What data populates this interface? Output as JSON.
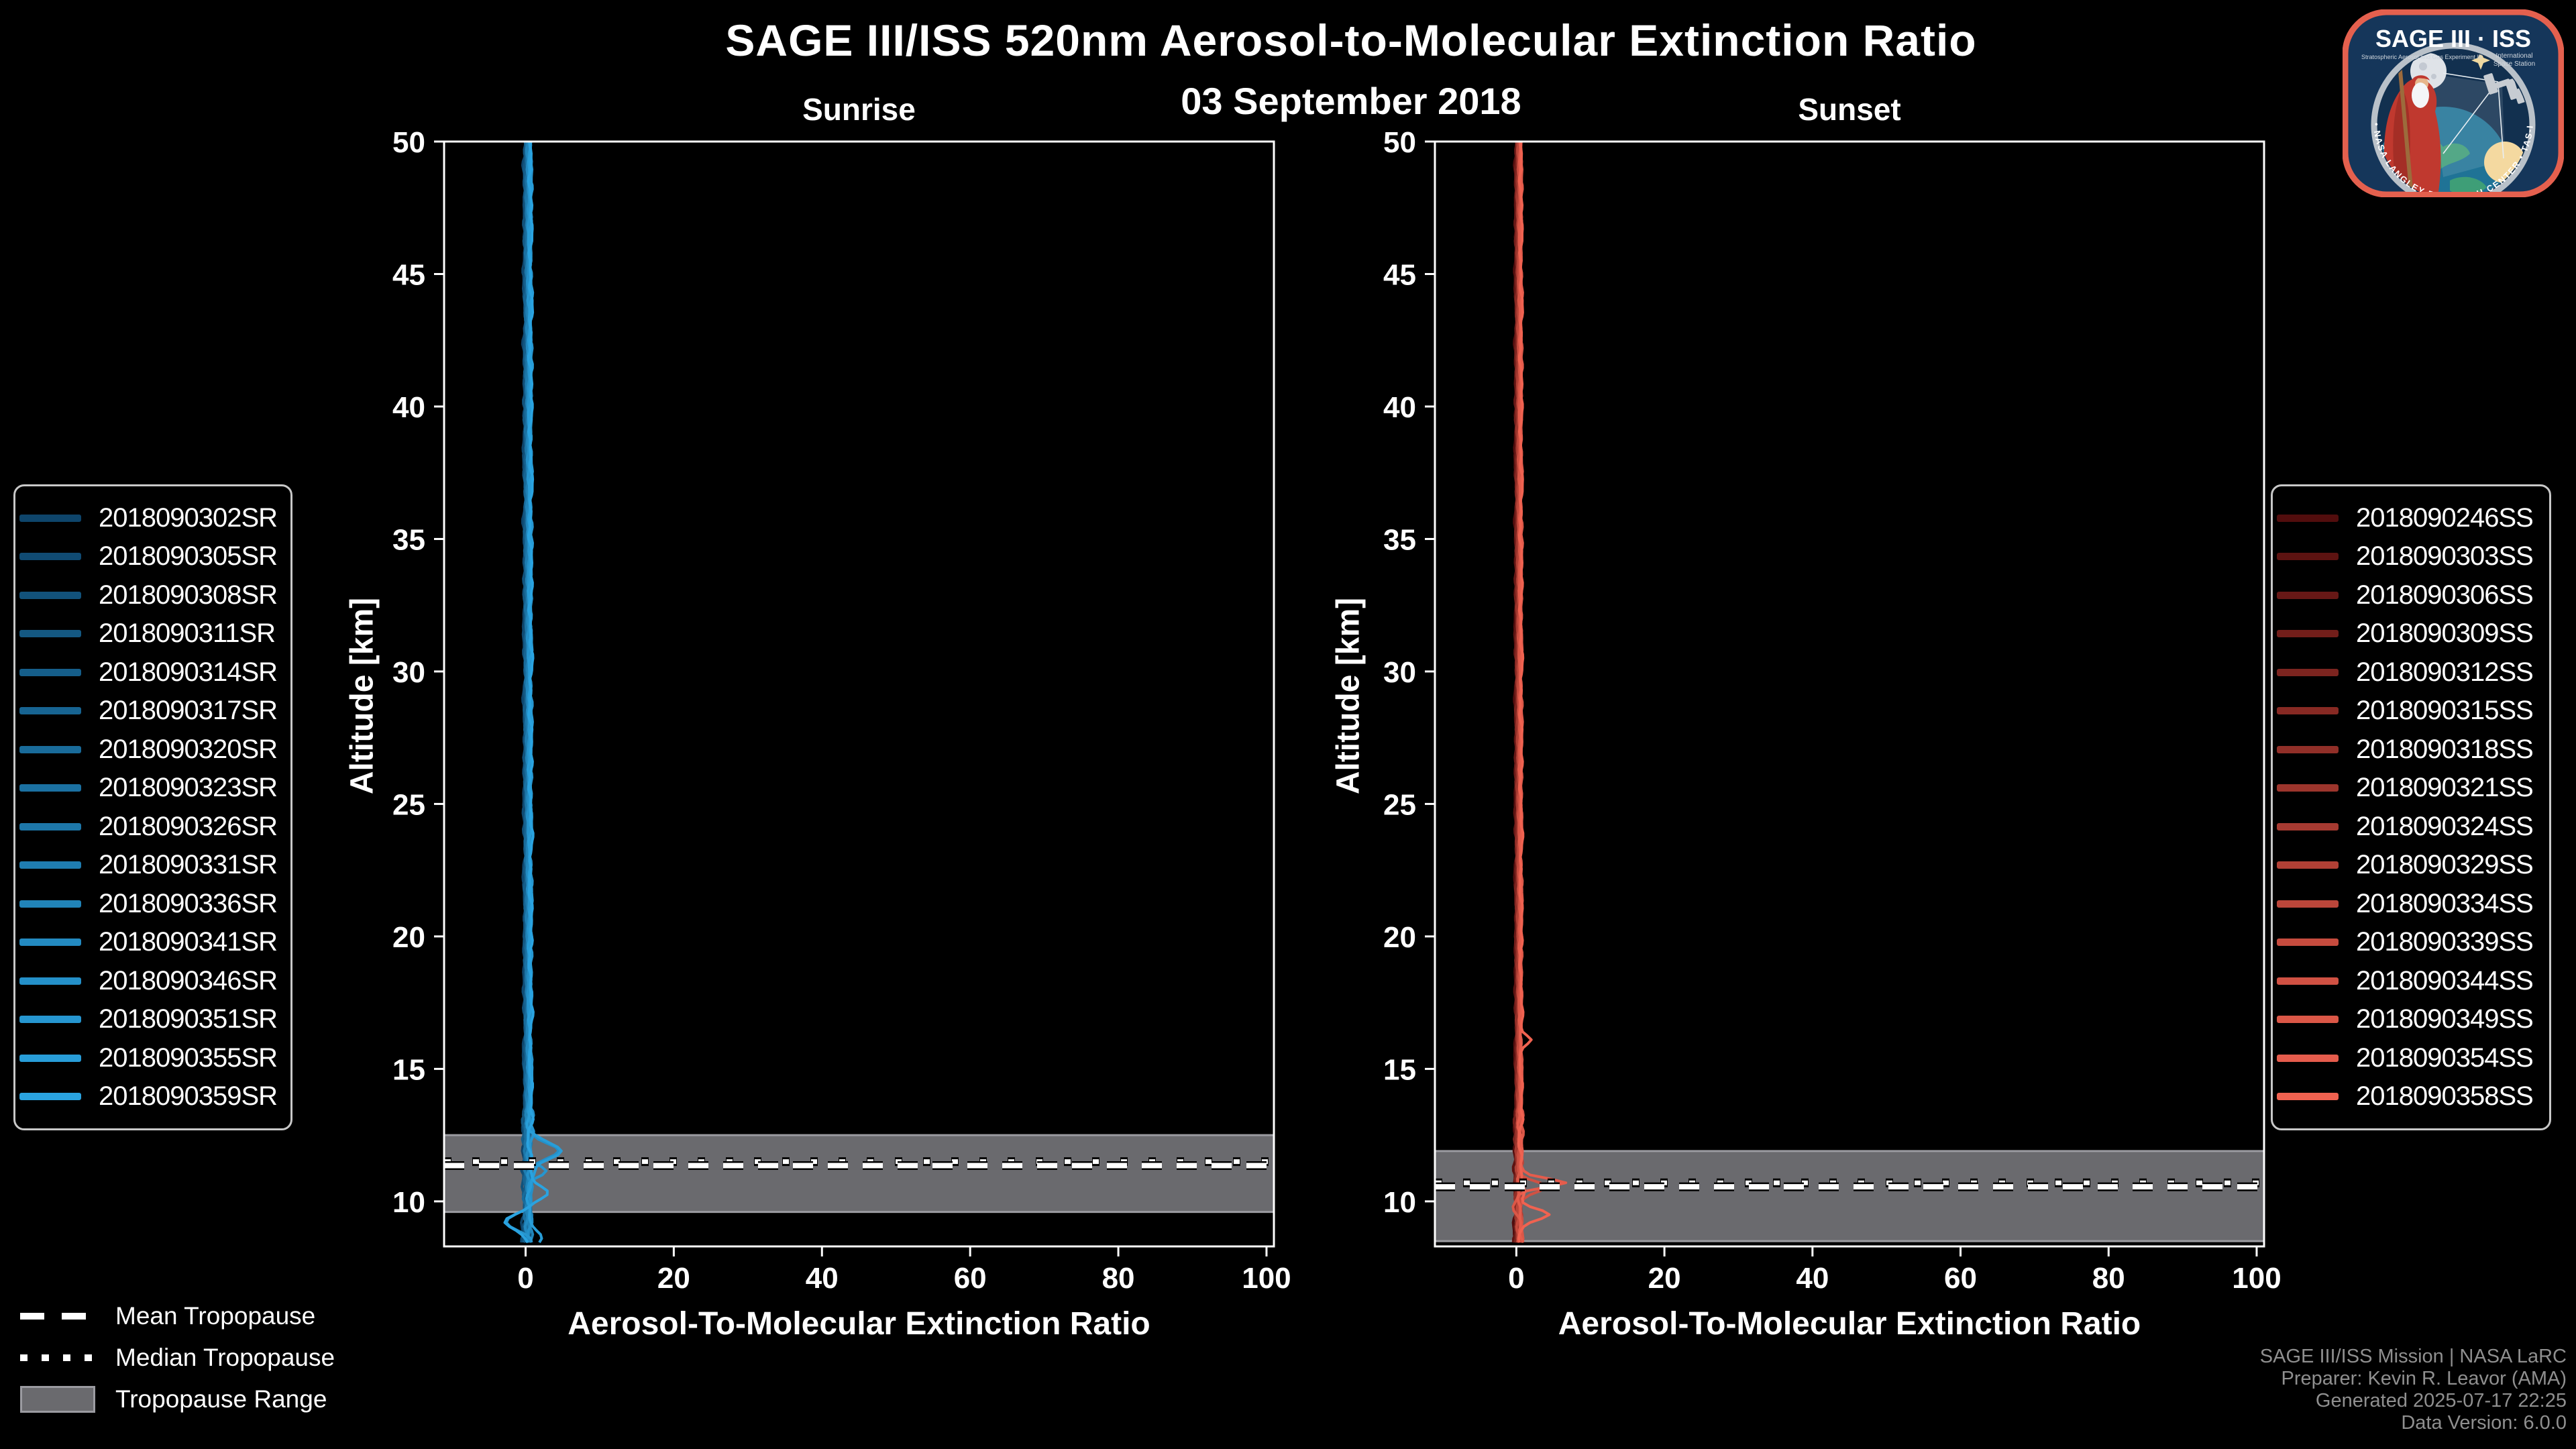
{
  "title": {
    "main": "SAGE III/ISS 520nm Aerosol-to-Molecular Extinction Ratio",
    "date": "03 September 2018"
  },
  "tropopause_legend": {
    "items": [
      {
        "label": "Mean Tropopause",
        "style": "dashed"
      },
      {
        "label": "Median Tropopause",
        "style": "dotted"
      },
      {
        "label": "Tropopause Range",
        "style": "band"
      }
    ]
  },
  "attribution": {
    "lines": [
      "SAGE III/ISS Mission | NASA LaRC",
      "Preparer: Kevin R. Leavor (AMA)",
      "Generated 2025-07-17 22:25",
      "Data Version: 6.0.0"
    ]
  },
  "logo": {
    "title": "SAGE III · ISS",
    "subtitle_left": "Stratospheric Aerosol and Gas Experiment III",
    "subtitle_right_1": "International",
    "subtitle_right_2": "Space Station",
    "ring_text": "BALL • NASA LANGLEY RESEARCH CENTER • TAS-I • ESA"
  },
  "chart_data": [
    {
      "id": "sunrise",
      "type": "line",
      "title": "Sunrise",
      "xlabel": "Aerosol-To-Molecular Extinction Ratio",
      "ylabel": "Altitude [km]",
      "xlim": [
        -11,
        101
      ],
      "ylim": [
        8.3,
        50
      ],
      "xticks": [
        0,
        20,
        40,
        60,
        80,
        100
      ],
      "yticks": [
        10,
        15,
        20,
        25,
        30,
        35,
        40,
        45,
        50
      ],
      "grid": false,
      "legend_position": "outside-left",
      "tropopause": {
        "mean_km": 11.35,
        "median_km": 11.5,
        "range_km": [
          9.6,
          12.5
        ]
      },
      "profile": {
        "base_ratio": 0.3,
        "spread": 0.8,
        "wiggle": 1.0,
        "alt_min_km": 8.35,
        "alt_max_km": 50
      },
      "features": [
        {
          "alt_km": 11.9,
          "width_km": 0.45,
          "peak_ratio": 3.9,
          "series": [
            12,
            14
          ]
        },
        {
          "alt_km": 11.1,
          "width_km": 0.3,
          "peak_ratio": 2.2,
          "series": [
            13
          ]
        },
        {
          "alt_km": 10.3,
          "width_km": 0.35,
          "peak_ratio": 1.8,
          "series": [
            15
          ]
        },
        {
          "alt_km": 9.2,
          "width_km": 0.4,
          "peak_ratio": -3.4,
          "series": [
            13,
            15
          ]
        },
        {
          "alt_km": 8.7,
          "width_km": 0.3,
          "peak_ratio": 1.6,
          "series": [
            14
          ]
        }
      ],
      "series": [
        {
          "name": "2018090302SR",
          "color": "#0e456b"
        },
        {
          "name": "2018090305SR",
          "color": "#104b73"
        },
        {
          "name": "2018090308SR",
          "color": "#12527b"
        },
        {
          "name": "2018090311SR",
          "color": "#145882"
        },
        {
          "name": "2018090314SR",
          "color": "#155e8a"
        },
        {
          "name": "2018090317SR",
          "color": "#176492"
        },
        {
          "name": "2018090320SR",
          "color": "#196b9a"
        },
        {
          "name": "2018090323SR",
          "color": "#1b71a2"
        },
        {
          "name": "2018090326SR",
          "color": "#1d77a9"
        },
        {
          "name": "2018090331SR",
          "color": "#1f7db1"
        },
        {
          "name": "2018090336SR",
          "color": "#2184b9"
        },
        {
          "name": "2018090341SR",
          "color": "#238ac1"
        },
        {
          "name": "2018090346SR",
          "color": "#2490c9"
        },
        {
          "name": "2018090351SR",
          "color": "#2696d0"
        },
        {
          "name": "2018090355SR",
          "color": "#289dd8"
        },
        {
          "name": "2018090359SR",
          "color": "#2aa3e0"
        }
      ]
    },
    {
      "id": "sunset",
      "type": "line",
      "title": "Sunset",
      "xlabel": "Aerosol-To-Molecular Extinction Ratio",
      "ylabel": "Altitude [km]",
      "xlim": [
        -11,
        101
      ],
      "ylim": [
        8.3,
        50
      ],
      "xticks": [
        0,
        20,
        40,
        60,
        80,
        100
      ],
      "yticks": [
        10,
        15,
        20,
        25,
        30,
        35,
        40,
        45,
        50
      ],
      "grid": false,
      "legend_position": "outside-right",
      "tropopause": {
        "mean_km": 10.55,
        "median_km": 10.7,
        "range_km": [
          8.5,
          11.9
        ]
      },
      "profile": {
        "base_ratio": 0.3,
        "spread": 0.7,
        "wiggle": 0.8,
        "alt_min_km": 8.32,
        "alt_max_km": 50
      },
      "features": [
        {
          "alt_km": 10.7,
          "width_km": 0.22,
          "peak_ratio": 6.0,
          "series": [
            14
          ]
        },
        {
          "alt_km": 10.55,
          "width_km": 0.3,
          "peak_ratio": 3.2,
          "series": [
            12
          ]
        },
        {
          "alt_km": 9.5,
          "width_km": 0.28,
          "peak_ratio": 4.0,
          "series": [
            15
          ]
        },
        {
          "alt_km": 9.8,
          "width_km": 0.3,
          "peak_ratio": -1.2,
          "series": [
            13
          ]
        },
        {
          "alt_km": 16.1,
          "width_km": 0.22,
          "peak_ratio": 1.5,
          "series": [
            15
          ]
        }
      ],
      "series": [
        {
          "name": "2018090246SS",
          "color": "#520d0d"
        },
        {
          "name": "2018090303SS",
          "color": "#5d1311"
        },
        {
          "name": "2018090306SS",
          "color": "#671816"
        },
        {
          "name": "2018090309SS",
          "color": "#721e1a"
        },
        {
          "name": "2018090312SS",
          "color": "#7c241f"
        },
        {
          "name": "2018090315SS",
          "color": "#872923"
        },
        {
          "name": "2018090318SS",
          "color": "#912f28"
        },
        {
          "name": "2018090321SS",
          "color": "#9c352c"
        },
        {
          "name": "2018090324SS",
          "color": "#a63a31"
        },
        {
          "name": "2018090329SS",
          "color": "#b14035"
        },
        {
          "name": "2018090334SS",
          "color": "#bb463a"
        },
        {
          "name": "2018090339SS",
          "color": "#c64b3e"
        },
        {
          "name": "2018090344SS",
          "color": "#d05143"
        },
        {
          "name": "2018090349SS",
          "color": "#db5747"
        },
        {
          "name": "2018090354SS",
          "color": "#e55c4c"
        },
        {
          "name": "2018090358SS",
          "color": "#f06250"
        }
      ]
    }
  ],
  "colors": {
    "background": "#000000",
    "foreground": "#ffffff",
    "tropopause_band": "#6a6a6e",
    "tropopause_band_edge": "#9b9ba1",
    "attribution_text": "#8f8f8f",
    "legend_border": "#c8c8c8",
    "logo_border": "#e4604e",
    "logo_navy": "#15365a"
  }
}
